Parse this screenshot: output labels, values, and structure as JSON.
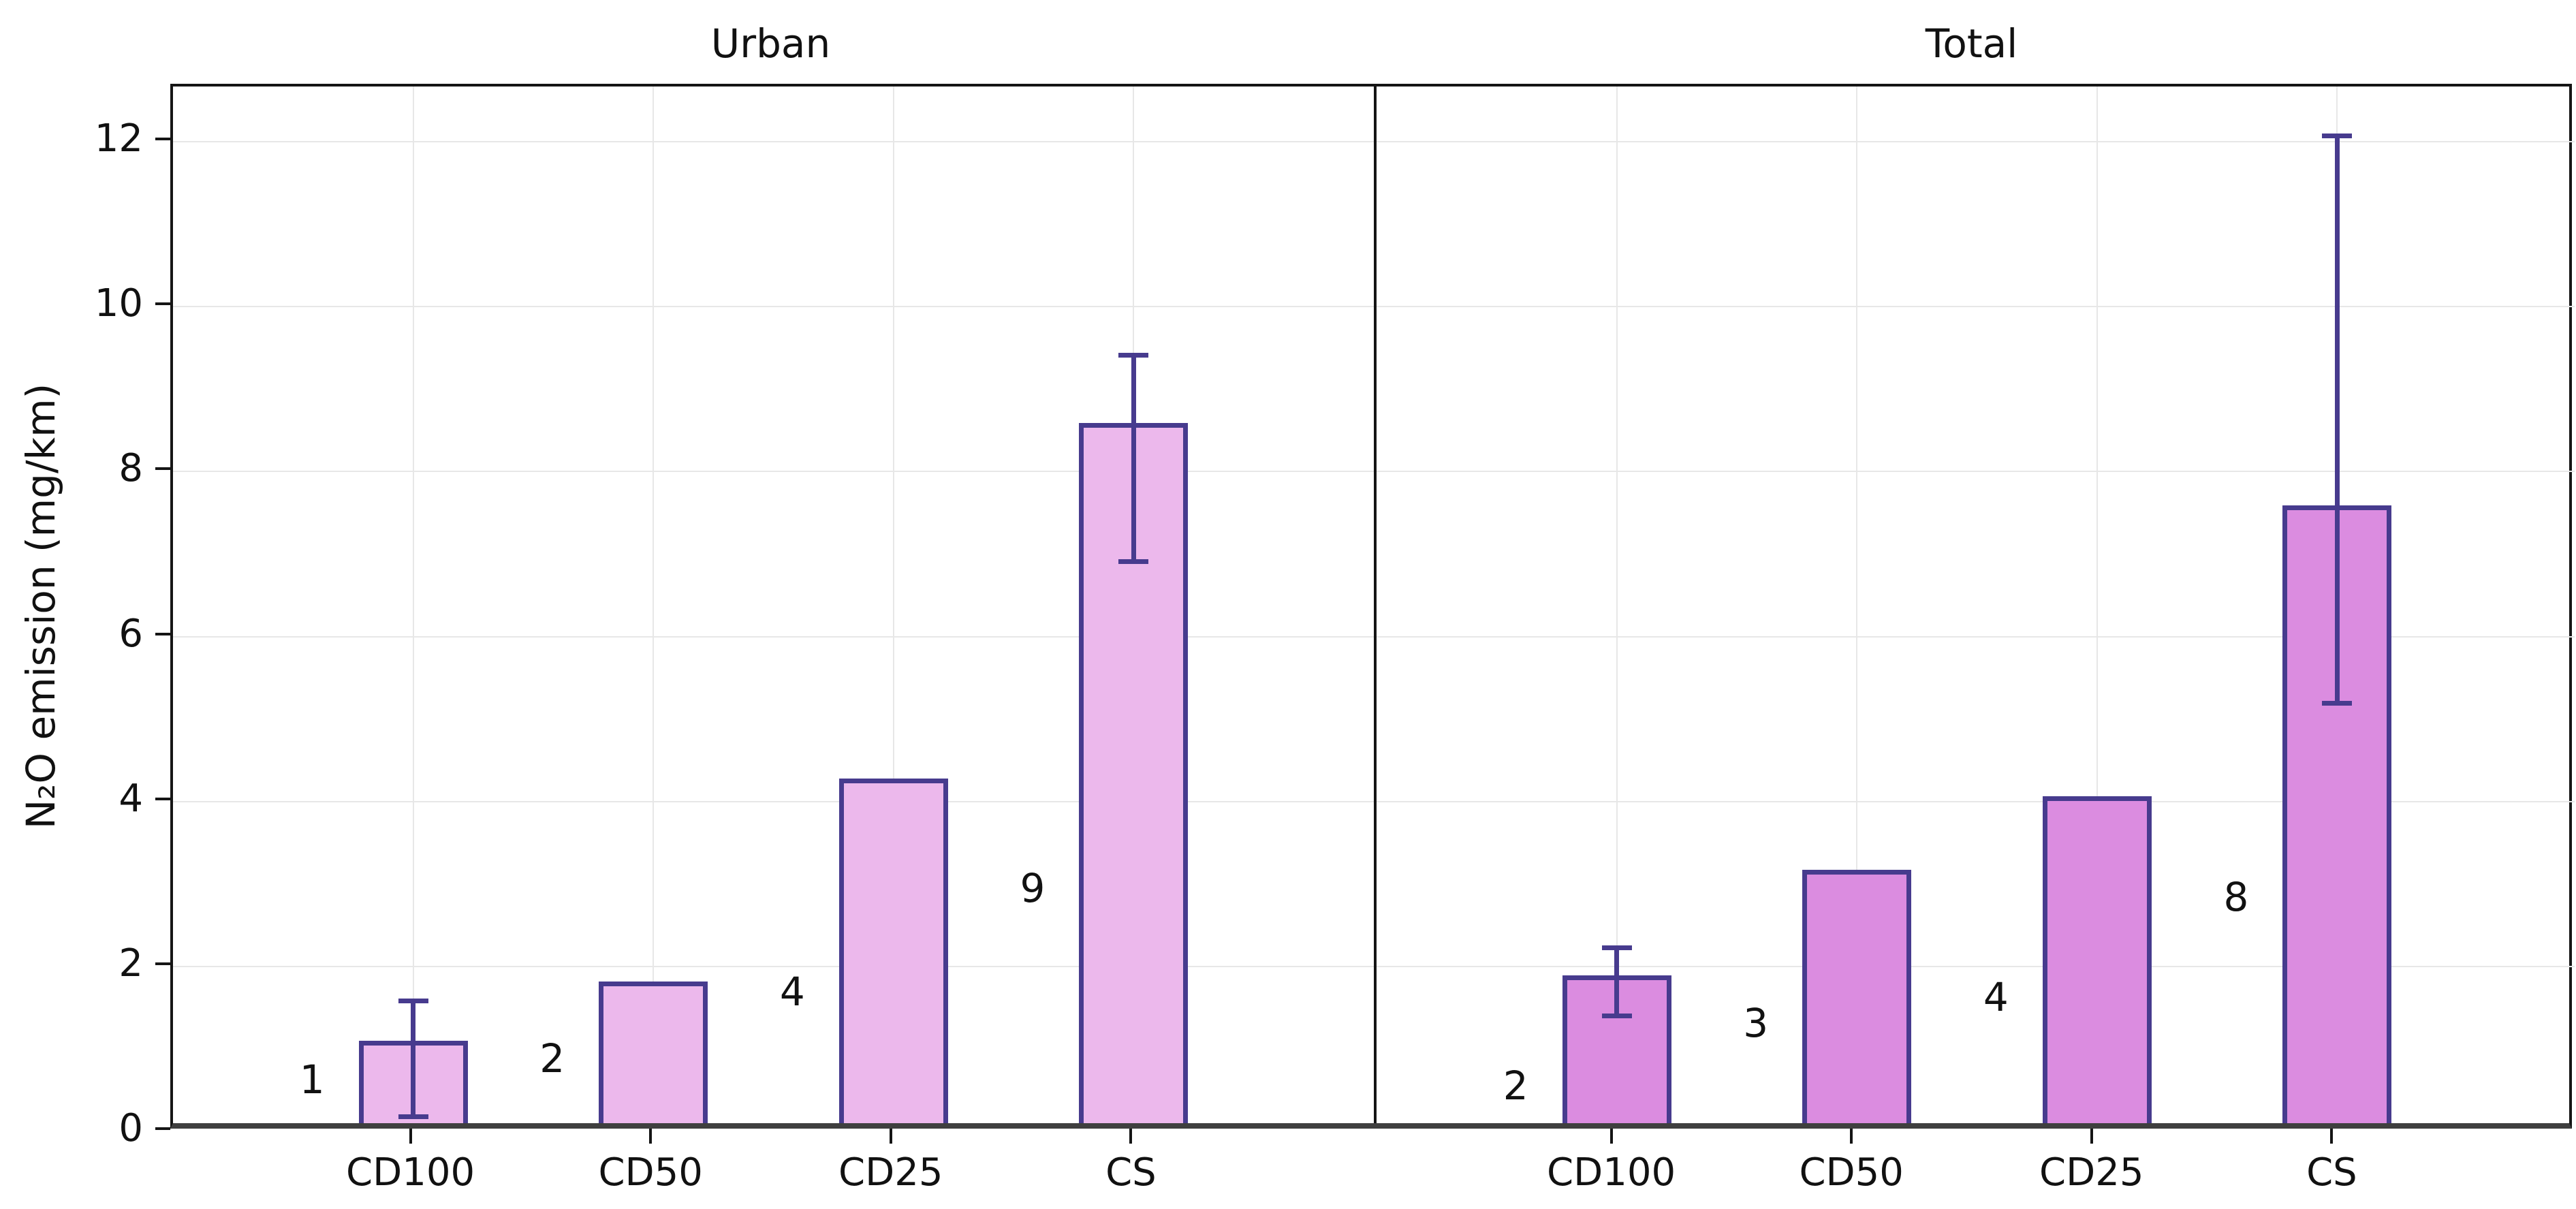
{
  "chart_data": {
    "type": "bar",
    "title": "",
    "ylabel": "N₂O emission (mg/km)",
    "xlabel": "",
    "ylim": [
      0,
      12.67
    ],
    "yticks": [
      0,
      2,
      4,
      6,
      8,
      10,
      12
    ],
    "categories": [
      "CD100",
      "CD50",
      "CD25",
      "CS"
    ],
    "grid": true,
    "legend_position": "none",
    "panels": [
      {
        "title": "Urban",
        "bar_fill": "#ecb8ec",
        "bars": [
          {
            "category": "CD100",
            "value": 1.1,
            "err_low": 0.18,
            "err_high": 1.58,
            "count_label": "1",
            "label_y": 0.63
          },
          {
            "category": "CD50",
            "value": 1.82,
            "err_low": null,
            "err_high": null,
            "count_label": "2",
            "label_y": 0.88
          },
          {
            "category": "CD25",
            "value": 4.28,
            "err_low": null,
            "err_high": null,
            "count_label": "4",
            "label_y": 1.69
          },
          {
            "category": "CS",
            "value": 8.59,
            "err_low": 6.91,
            "err_high": 9.41,
            "count_label": "9",
            "label_y": 2.95
          }
        ]
      },
      {
        "title": "Total",
        "bar_fill": "#db8ce0",
        "bars": [
          {
            "category": "CD100",
            "value": 1.89,
            "err_low": 1.4,
            "err_high": 2.23,
            "count_label": "2",
            "label_y": 0.55
          },
          {
            "category": "CD50",
            "value": 3.17,
            "err_low": null,
            "err_high": null,
            "count_label": "3",
            "label_y": 1.31
          },
          {
            "category": "CD25",
            "value": 4.06,
            "err_low": null,
            "err_high": null,
            "count_label": "4",
            "label_y": 1.63
          },
          {
            "category": "CS",
            "value": 7.59,
            "err_low": 5.19,
            "err_high": 12.07,
            "count_label": "8",
            "label_y": 2.84
          }
        ]
      }
    ],
    "colors": {
      "edge": "#473b8e",
      "urban_fill": "#ecb8ec",
      "total_fill": "#db8ce0",
      "grid": "#e7e7e7",
      "spine": "#151515",
      "baseline": "#3f3f3f",
      "text": "#111111"
    }
  }
}
